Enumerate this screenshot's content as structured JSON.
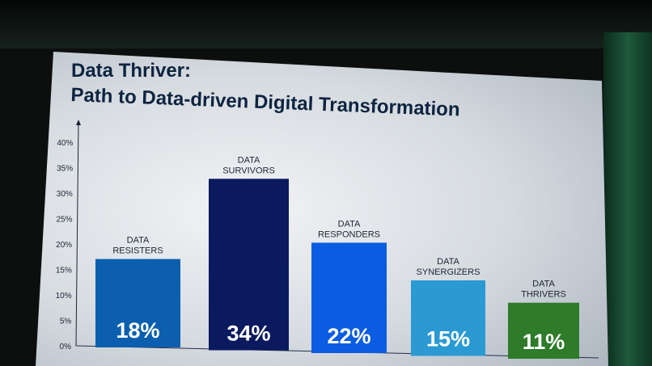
{
  "chart_data": {
    "type": "bar",
    "title": "Data Thriver:",
    "subtitle": "Path to Data-driven Digital Transformation",
    "xlabel": "",
    "ylabel": "",
    "ylim": [
      0,
      40
    ],
    "yticks": [
      "0%",
      "5%",
      "10%",
      "15%",
      "20%",
      "25%",
      "30%",
      "35%",
      "40%"
    ],
    "categories": [
      [
        "DATA",
        "RESISTERS"
      ],
      [
        "DATA",
        "SURVIVORS"
      ],
      [
        "DATA",
        "RESPONDERS"
      ],
      [
        "DATA",
        "SYNERGIZERS"
      ],
      [
        "DATA",
        "THRIVERS"
      ]
    ],
    "values": [
      18,
      34,
      22,
      15,
      11
    ],
    "value_labels": [
      "18%",
      "34%",
      "22%",
      "15%",
      "11%"
    ],
    "colors": [
      "#0b5fae",
      "#0b1a5e",
      "#0b5ce0",
      "#2b9ad2",
      "#2e7b2a"
    ],
    "grid": false
  }
}
